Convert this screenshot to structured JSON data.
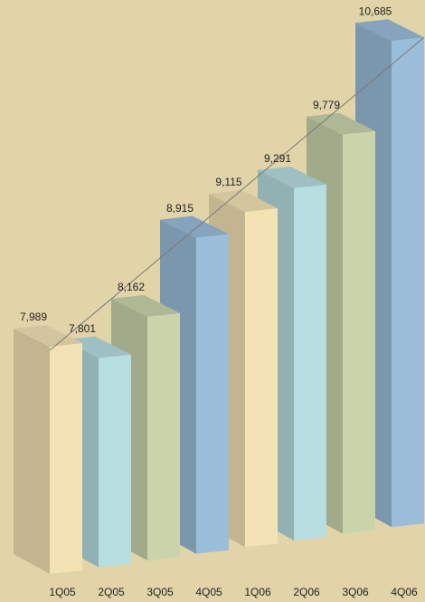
{
  "chart_data": {
    "type": "bar3d",
    "categories": [
      "1Q05",
      "2Q05",
      "3Q05",
      "4Q05",
      "1Q06",
      "2Q06",
      "3Q06",
      "4Q06"
    ],
    "values": [
      7989,
      7801,
      8162,
      8915,
      9115,
      9291,
      9779,
      10685
    ],
    "value_labels": [
      "7,989",
      "7,801",
      "8,162",
      "8,915",
      "9,115",
      "9,291",
      "9,779",
      "10,685"
    ],
    "colors": [
      "#f3e2b4",
      "#b6dde0",
      "#c9d4ab",
      "#9abdd9",
      "#f3e2b4",
      "#b6dde0",
      "#c9d4ab",
      "#9abdd9"
    ],
    "background": "#e1d4a8"
  }
}
